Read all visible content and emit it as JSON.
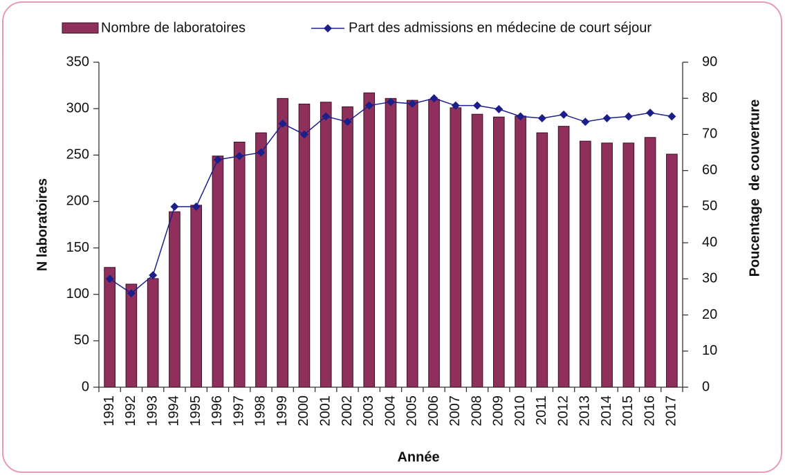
{
  "chart_data": {
    "type": "bar_line",
    "categories": [
      "1991",
      "1992",
      "1993",
      "1994",
      "1995",
      "1996",
      "1997",
      "1998",
      "1999",
      "2000",
      "2001",
      "2002",
      "2003",
      "2004",
      "2005",
      "2006",
      "2007",
      "2008",
      "2009",
      "2010",
      "2011",
      "2012",
      "2013",
      "2014",
      "2015",
      "2016",
      "2017"
    ],
    "series": [
      {
        "name": "Nombre de laboratoires",
        "color": "#8e2f5c",
        "type": "bar",
        "values": [
          129,
          111,
          117,
          189,
          196,
          249,
          264,
          274,
          311,
          305,
          307,
          302,
          317,
          311,
          309,
          310,
          301,
          294,
          291,
          292,
          274,
          281,
          265,
          263,
          263,
          269,
          251
        ]
      },
      {
        "name": "Part des admissions en médecine de court séjour",
        "color": "#1c1f8a",
        "type": "line",
        "axis": "y2",
        "values": [
          30,
          26,
          31,
          50,
          50,
          63,
          64,
          65,
          73,
          70,
          75,
          73.5,
          78,
          79,
          78.5,
          80,
          78,
          78,
          77,
          75,
          74.5,
          75.5,
          73.5,
          74.5,
          75,
          76,
          75
        ]
      }
    ],
    "xlabel": "Année",
    "ylabel": "N laboratoires",
    "y2label": "Poucentage  de couverture",
    "ylim": [
      0,
      350
    ],
    "yticks": [
      0,
      50,
      100,
      150,
      200,
      250,
      300,
      350
    ],
    "y2lim": [
      0,
      90
    ],
    "y2ticks": [
      0,
      10,
      20,
      30,
      40,
      50,
      60,
      70,
      80,
      90
    ],
    "legend": "top"
  }
}
